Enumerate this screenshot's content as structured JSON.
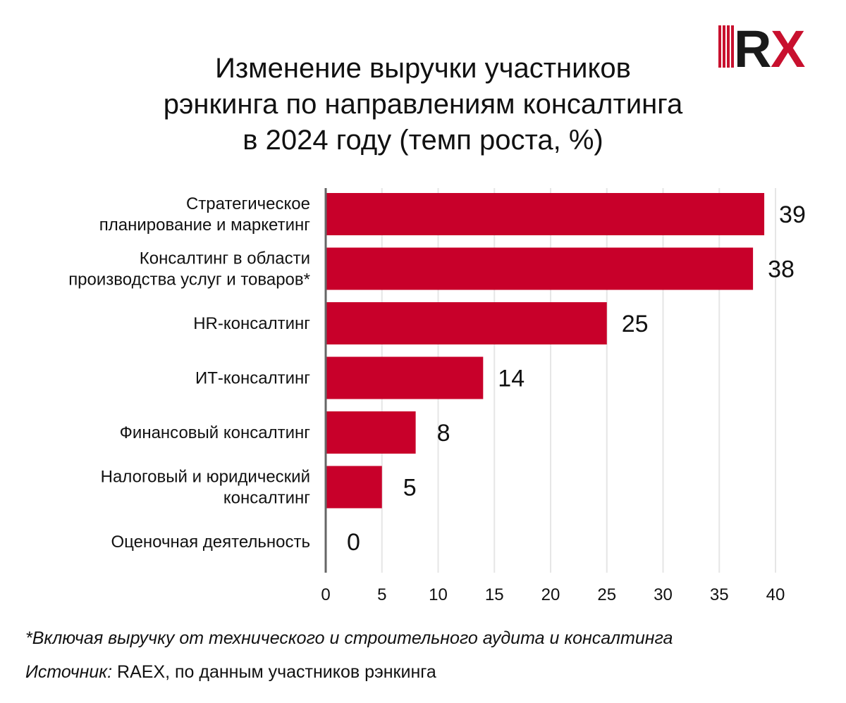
{
  "title_lines": [
    "Изменение выручки участников",
    "рэнкинга по направлениям консалтинга",
    "в 2024 году (темп роста, %)"
  ],
  "logo_text": "RX",
  "colors": {
    "bar": "#c8002a",
    "grid": "#e6e6e6",
    "axis": "#666666",
    "text": "#111111",
    "logo_red": "#c8102e",
    "logo_dark": "#1a1a1a"
  },
  "chart_data": {
    "type": "bar",
    "orientation": "horizontal",
    "title": "Изменение выручки участников рэнкинга по направлениям консалтинга в 2024 году (темп роста, %)",
    "categories": [
      [
        "Стратегическое",
        "планирование и маркетинг"
      ],
      [
        "Консалтинг в области",
        "производства услуг и товаров*"
      ],
      [
        "HR-консалтинг"
      ],
      [
        "ИТ-консалтинг"
      ],
      [
        "Финансовый консалтинг"
      ],
      [
        "Налоговый и юридический",
        "консалтинг"
      ],
      [
        "Оценочная деятельность"
      ]
    ],
    "values": [
      39,
      38,
      25,
      14,
      8,
      5,
      0
    ],
    "xlim": [
      0,
      40
    ],
    "xticks": [
      0,
      5,
      10,
      15,
      20,
      25,
      30,
      35,
      40
    ],
    "xlabel": "",
    "ylabel": "",
    "grid": true,
    "data_labels": true
  },
  "footnote": "*Включая выручку от технического и строительного аудита и консалтинга",
  "source": {
    "label": "Источник:",
    "text": " RAEX, по данным участников рэнкинга"
  }
}
